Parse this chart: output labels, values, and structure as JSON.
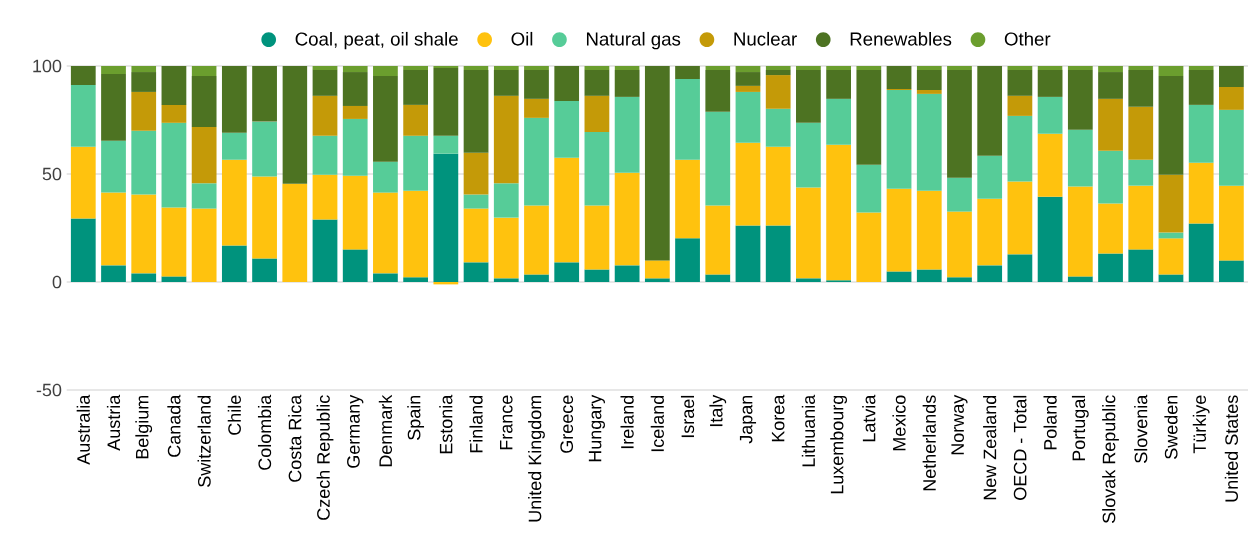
{
  "chart_data": {
    "type": "bar",
    "stacked": true,
    "categories": [
      "Australia",
      "Austria",
      "Belgium",
      "Canada",
      "Switzerland",
      "Chile",
      "Colombia",
      "Costa Rica",
      "Czech Republic",
      "Germany",
      "Denmark",
      "Spain",
      "Estonia",
      "Finland",
      "France",
      "United Kingdom",
      "Greece",
      "Hungary",
      "Ireland",
      "Iceland",
      "Israel",
      "Italy",
      "Japan",
      "Korea",
      "Lithuania",
      "Luxembourg",
      "Latvia",
      "Mexico",
      "Netherlands",
      "Norway",
      "New Zealand",
      "OECD - Total",
      "Poland",
      "Portugal",
      "Slovak Republic",
      "Slovenia",
      "Sweden",
      "Türkiye",
      "United States"
    ],
    "series": [
      {
        "name": "Coal, peat, oil shale",
        "color": "#00937d",
        "values": [
          29.4,
          7.7,
          4.0,
          2.6,
          0,
          16.9,
          10.9,
          0,
          28.9,
          15.1,
          4.0,
          2.2,
          59.4,
          9.1,
          1.7,
          3.5,
          9.1,
          5.8,
          7.7,
          1.7,
          20.2,
          3.5,
          26.2,
          26.2,
          1.7,
          0.8,
          0,
          4.9,
          5.8,
          2.2,
          7.7,
          12.8,
          39.5,
          2.6,
          13.2,
          15.1,
          3.5,
          27.1,
          10.0
        ]
      },
      {
        "name": "Oil",
        "color": "#ffc20e",
        "values": [
          33.2,
          33.7,
          36.5,
          31.9,
          34.0,
          39.7,
          37.9,
          45.5,
          20.8,
          34.1,
          37.4,
          40.1,
          -1.1,
          24.9,
          28.1,
          31.9,
          48.4,
          29.6,
          42.9,
          8.3,
          36.4,
          31.9,
          38.3,
          36.4,
          42.0,
          62.7,
          32.2,
          38.3,
          36.5,
          30.4,
          30.9,
          33.7,
          29.1,
          41.6,
          23.1,
          29.5,
          16.7,
          28.1,
          34.6
        ]
      },
      {
        "name": "Natural gas",
        "color": "#56cc98",
        "values": [
          28.6,
          24.0,
          29.5,
          39.2,
          11.7,
          12.5,
          25.4,
          0,
          18.0,
          26.3,
          14.3,
          25.4,
          8.3,
          6.5,
          15.9,
          40.6,
          26.3,
          34.1,
          35.1,
          0,
          37.4,
          43.4,
          23.5,
          17.6,
          30.0,
          21.3,
          22.1,
          45.7,
          44.8,
          15.7,
          19.9,
          30.4,
          17.1,
          26.3,
          24.5,
          12.0,
          2.7,
          26.8,
          35.1
        ]
      },
      {
        "name": "Nuclear",
        "color": "#c49a08",
        "values": [
          0,
          0,
          18.0,
          8.3,
          26.1,
          0,
          0,
          0,
          18.5,
          6.0,
          0,
          14.3,
          0,
          19.3,
          40.5,
          8.8,
          0,
          16.7,
          0,
          0,
          0,
          0,
          2.8,
          15.6,
          0,
          0,
          0,
          0.5,
          1.8,
          0,
          0,
          9.3,
          0,
          0,
          24.0,
          24.5,
          26.8,
          0,
          10.6
        ]
      },
      {
        "name": "Renewables",
        "color": "#4d7322",
        "values": [
          8.8,
          30.9,
          9.2,
          18.0,
          23.6,
          30.9,
          25.8,
          54.5,
          12.0,
          15.7,
          39.7,
          16.2,
          31.4,
          38.4,
          12.0,
          13.4,
          16.2,
          12.0,
          12.5,
          90.0,
          6.0,
          19.4,
          6.4,
          2.4,
          24.5,
          13.4,
          43.9,
          10.6,
          9.3,
          49.9,
          41.5,
          12.0,
          12.5,
          27.7,
          12.4,
          17.1,
          45.7,
          16.2,
          9.7
        ]
      },
      {
        "name": "Other",
        "color": "#6b9e2e",
        "values": [
          0,
          3.7,
          2.8,
          0,
          4.6,
          0,
          0,
          0,
          1.8,
          2.8,
          4.6,
          1.8,
          0.9,
          1.8,
          1.8,
          1.8,
          0,
          1.8,
          1.8,
          0,
          0,
          1.8,
          2.8,
          1.8,
          1.8,
          1.8,
          1.8,
          0,
          1.8,
          1.8,
          0,
          1.8,
          1.8,
          1.8,
          2.8,
          1.8,
          4.6,
          1.8,
          0
        ]
      }
    ],
    "ylim": [
      -50,
      100
    ],
    "yticks": [
      -50,
      0,
      50,
      100
    ],
    "grid": "y",
    "legend": "top"
  }
}
